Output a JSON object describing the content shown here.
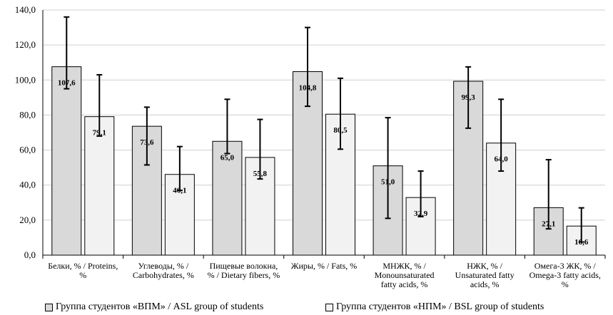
{
  "chart_data": {
    "type": "bar",
    "categories": [
      [
        "Белки, % / Proteins,",
        "%"
      ],
      [
        "Углеводы, % /",
        "Carbohydrates, %"
      ],
      [
        "Пищевые волокна,",
        "% / Dietary fibers, %"
      ],
      [
        "Жиры, % / Fats, %"
      ],
      [
        "МНЖК, % /",
        "Monounsaturated",
        "fatty acids, %"
      ],
      [
        "НЖК, % /",
        "Unsaturated fatty",
        "acids, %"
      ],
      [
        "Омега-3 ЖК, % /",
        "Omega-3 fatty acids,",
        "%"
      ]
    ],
    "series": [
      {
        "name": "Группа студентов «ВПМ»   / ASL group of students",
        "values": [
          107.6,
          73.6,
          65.0,
          104.8,
          51.0,
          99.3,
          27.1
        ],
        "labels": [
          "107,6",
          "73,6",
          "65,0",
          "104,8",
          "51,0",
          "99,3",
          "27,1"
        ],
        "error_low": [
          95,
          51.5,
          58,
          85,
          21,
          72.5,
          15
        ],
        "error_high": [
          136,
          84.5,
          89,
          130,
          78.5,
          107.5,
          54.5
        ],
        "color": "#d9d9d9"
      },
      {
        "name": "Группа студентов «НПМ» / BSL group of students",
        "values": [
          79.1,
          46.1,
          55.8,
          80.5,
          32.9,
          64.0,
          16.6
        ],
        "labels": [
          "79,1",
          "46,1",
          "55,8",
          "80,5",
          "32,9",
          "64,0",
          "16,6"
        ],
        "error_low": [
          68,
          37,
          43.5,
          60.5,
          22,
          48,
          7.5
        ],
        "error_high": [
          103,
          62,
          77.5,
          101,
          48,
          89,
          27
        ],
        "color": "#f2f2f2"
      }
    ],
    "y_ticks": [
      "0,0",
      "20,0",
      "40,0",
      "60,0",
      "80,0",
      "100,0",
      "120,0",
      "140,0"
    ],
    "ylim": [
      0,
      140
    ],
    "grid": true,
    "legend_position": "bottom"
  }
}
